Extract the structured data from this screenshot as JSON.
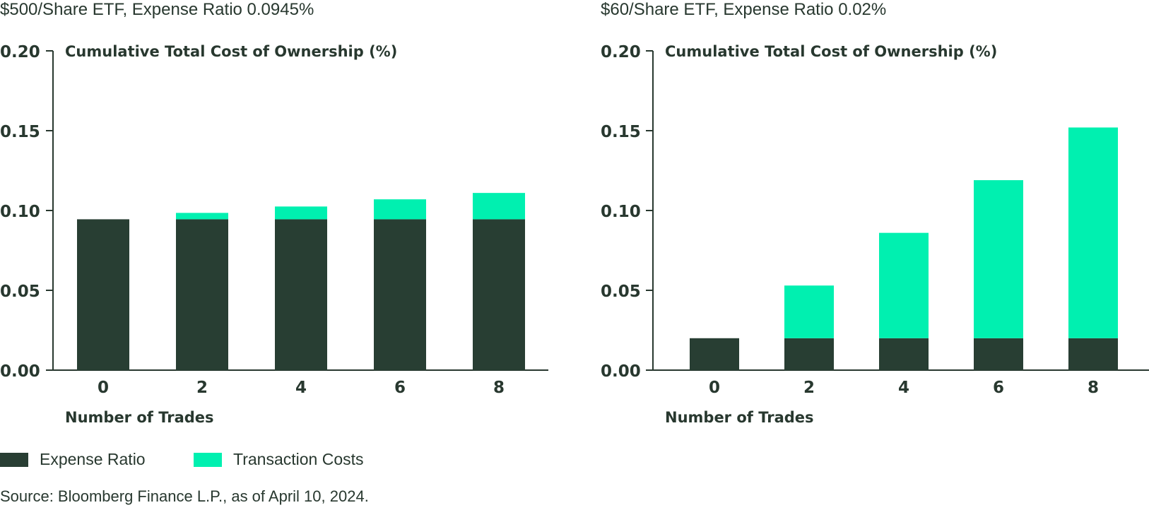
{
  "panels": {
    "left": {
      "title": "$500/Share ETF, Expense Ratio 0.0945%"
    },
    "right": {
      "title": "$60/Share ETF, Expense Ratio 0.02%"
    }
  },
  "legend": {
    "items": [
      {
        "label": "Expense Ratio",
        "color": "#283e33"
      },
      {
        "label": "Transaction Costs",
        "color": "#00f0b0"
      }
    ]
  },
  "source": "Source: Bloomberg Finance L.P., as of April 10, 2024.",
  "chart_data": [
    {
      "type": "bar",
      "stacked": true,
      "title": "$500/Share ETF, Expense Ratio 0.0945%",
      "inner_title": "Cumulative Total Cost of Ownership (%)",
      "xlabel": "Number of Trades",
      "ylabel": "",
      "categories": [
        "0",
        "2",
        "4",
        "6",
        "8"
      ],
      "series": [
        {
          "name": "Expense Ratio",
          "color": "#283e33",
          "values": [
            0.0945,
            0.0945,
            0.0945,
            0.0945,
            0.0945
          ]
        },
        {
          "name": "Transaction Costs",
          "color": "#00f0b0",
          "values": [
            0,
            0.004,
            0.008,
            0.0125,
            0.0165
          ]
        }
      ],
      "ylim": [
        0,
        0.2
      ],
      "yticks": [
        "0.00",
        "0.05",
        "0.10",
        "0.15",
        "0.20"
      ],
      "grid": false
    },
    {
      "type": "bar",
      "stacked": true,
      "title": "$60/Share ETF, Expense Ratio 0.02%",
      "inner_title": "Cumulative Total Cost of Ownership (%)",
      "xlabel": "Number of Trades",
      "ylabel": "",
      "categories": [
        "0",
        "2",
        "4",
        "6",
        "8"
      ],
      "series": [
        {
          "name": "Expense Ratio",
          "color": "#283e33",
          "values": [
            0.02,
            0.02,
            0.02,
            0.02,
            0.02
          ]
        },
        {
          "name": "Transaction Costs",
          "color": "#00f0b0",
          "values": [
            0,
            0.033,
            0.066,
            0.099,
            0.132
          ]
        }
      ],
      "ylim": [
        0,
        0.2
      ],
      "yticks": [
        "0.00",
        "0.05",
        "0.10",
        "0.15",
        "0.20"
      ],
      "grid": false
    }
  ]
}
